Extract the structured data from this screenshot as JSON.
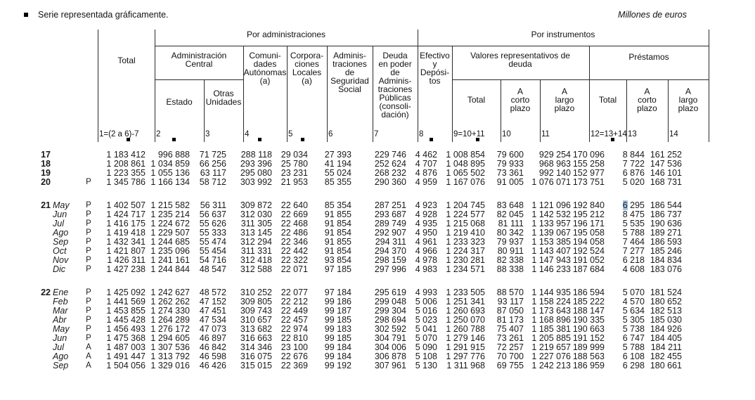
{
  "meta": {
    "legend": "Serie representada gráficamente.",
    "units": "Millones de euros",
    "selection_color": "#a3c6e8",
    "marker_columns": [
      "1",
      "2",
      "4",
      "5",
      "8",
      "9",
      "12"
    ]
  },
  "header": {
    "por_administraciones": "Por administraciones",
    "por_instrumentos": "Por instrumentos",
    "total1": "Total",
    "admin_central": "Administración\nCentral",
    "estado": "Estado",
    "otras_unidades": "Otras\nUnidades",
    "comunidades": "Comuni-\ndades\nAutónomas\n(a)",
    "corporaciones": "Corpora-\nciones\nLocales\n(a)",
    "seguridad_social": "Adminis-\ntraciones\nde\nSeguridad\nSocial",
    "deuda_en_poder": "Deuda\nen poder\nde\nAdminis-\ntraciones\nPúblicas\n(consoli-\ndación)",
    "efectivo": "Efectivo\ny\nDepósi-\ntos",
    "valores": "Valores representativos de\ndeuda",
    "prestamos": "Préstamos",
    "valores_total": "Total",
    "valores_corto": "A\ncorto\nplazo",
    "valores_largo": "A\nlargo\nplazo",
    "prestamos_total": "Total",
    "prestamos_corto": "A\ncorto\nplazo",
    "prestamos_largo": "A\nlargo\nplazo",
    "colnums": [
      "1=(2 a 6)-7",
      "2",
      "3",
      "4",
      "5",
      "6",
      "7",
      "8",
      "9=10+11",
      "10",
      "11",
      "12=13+14",
      "13",
      "14"
    ]
  },
  "table": {
    "selection": {
      "group": 1,
      "row": 0,
      "col": 12,
      "length": 1
    },
    "row_groups": [
      {
        "rows": [
          {
            "year": "17",
            "month": "",
            "flag": "",
            "values": [
              "1 183 412",
              "996 888",
              "71 725",
              "288 118",
              "29 034",
              "27 393",
              "229 746",
              "4 462",
              "1 008 854",
              "79 600",
              "929 254",
              "170 096",
              "8 844",
              "161 252"
            ]
          },
          {
            "year": "18",
            "month": "",
            "flag": "",
            "values": [
              "1 208 861",
              "1 034 859",
              "66 256",
              "293 396",
              "25 780",
              "41 194",
              "252 624",
              "4 707",
              "1 048 895",
              "79 933",
              "968 963",
              "155 258",
              "7 722",
              "147 536"
            ]
          },
          {
            "year": "19",
            "month": "",
            "flag": "",
            "values": [
              "1 223 355",
              "1 055 136",
              "63 117",
              "295 080",
              "23 231",
              "55 024",
              "268 232",
              "4 876",
              "1 065 502",
              "73 361",
              "992 140",
              "152 977",
              "6 876",
              "146 101"
            ]
          },
          {
            "year": "20",
            "month": "",
            "flag": "P",
            "values": [
              "1 345 786",
              "1 166 134",
              "58 712",
              "303 992",
              "21 953",
              "85 355",
              "290 360",
              "4 959",
              "1 167 076",
              "91 005",
              "1 076 071",
              "173 751",
              "5 020",
              "168 731"
            ]
          }
        ]
      },
      {
        "rows": [
          {
            "year": "21",
            "month": "May",
            "flag": "P",
            "values": [
              "1 402 507",
              "1 215 582",
              "56 311",
              "309 872",
              "22 640",
              "85 354",
              "287 251",
              "4 923",
              "1 204 745",
              "83 648",
              "1 121 096",
              "192 840",
              "6 295",
              "186 544"
            ]
          },
          {
            "year": "",
            "month": "Jun",
            "flag": "P",
            "values": [
              "1 424 717",
              "1 235 214",
              "56 637",
              "312 030",
              "22 669",
              "91 855",
              "293 687",
              "4 928",
              "1 224 577",
              "82 045",
              "1 142 532",
              "195 212",
              "8 475",
              "186 737"
            ]
          },
          {
            "year": "",
            "month": "Jul",
            "flag": "P",
            "values": [
              "1 416 175",
              "1 224 672",
              "55 626",
              "311 305",
              "22 468",
              "91 854",
              "289 749",
              "4 935",
              "1 215 068",
              "81 111",
              "1 133 957",
              "196 171",
              "5 535",
              "190 636"
            ]
          },
          {
            "year": "",
            "month": "Ago",
            "flag": "P",
            "values": [
              "1 419 418",
              "1 229 507",
              "55 333",
              "313 145",
              "22 486",
              "91 854",
              "292 907",
              "4 950",
              "1 219 410",
              "80 342",
              "1 139 067",
              "195 058",
              "5 788",
              "189 271"
            ]
          },
          {
            "year": "",
            "month": "Sep",
            "flag": "P",
            "values": [
              "1 432 341",
              "1 244 685",
              "55 474",
              "312 294",
              "22 346",
              "91 855",
              "294 311",
              "4 961",
              "1 233 323",
              "79 937",
              "1 153 385",
              "194 058",
              "7 464",
              "186 593"
            ]
          },
          {
            "year": "",
            "month": "Oct",
            "flag": "P",
            "values": [
              "1 421 807",
              "1 235 096",
              "55 454",
              "311 331",
              "22 442",
              "91 854",
              "294 370",
              "4 966",
              "1 224 317",
              "80 911",
              "1 143 407",
              "192 524",
              "7 277",
              "185 246"
            ]
          },
          {
            "year": "",
            "month": "Nov",
            "flag": "P",
            "values": [
              "1 426 311",
              "1 241 161",
              "54 716",
              "312 418",
              "22 322",
              "93 854",
              "298 159",
              "4 978",
              "1 230 281",
              "82 338",
              "1 147 943",
              "191 052",
              "6 218",
              "184 834"
            ]
          },
          {
            "year": "",
            "month": "Dic",
            "flag": "P",
            "values": [
              "1 427 238",
              "1 244 844",
              "48 547",
              "312 588",
              "22 071",
              "97 185",
              "297 996",
              "4 983",
              "1 234 571",
              "88 338",
              "1 146 233",
              "187 684",
              "4 608",
              "183 076"
            ]
          }
        ]
      },
      {
        "rows": [
          {
            "year": "22",
            "month": "Ene",
            "flag": "P",
            "values": [
              "1 425 092",
              "1 242 627",
              "48 572",
              "310 252",
              "22 077",
              "97 184",
              "295 619",
              "4 993",
              "1 233 505",
              "88 570",
              "1 144 935",
              "186 594",
              "5 070",
              "181 524"
            ]
          },
          {
            "year": "",
            "month": "Feb",
            "flag": "P",
            "values": [
              "1 441 569",
              "1 262 262",
              "47 152",
              "309 805",
              "22 212",
              "99 186",
              "299 048",
              "5 006",
              "1 251 341",
              "93 117",
              "1 158 224",
              "185 222",
              "4 570",
              "180 652"
            ]
          },
          {
            "year": "",
            "month": "Mar",
            "flag": "P",
            "values": [
              "1 453 855",
              "1 274 330",
              "47 451",
              "309 743",
              "22 449",
              "99 187",
              "299 304",
              "5 016",
              "1 260 693",
              "87 050",
              "1 173 643",
              "188 147",
              "5 634",
              "182 513"
            ]
          },
          {
            "year": "",
            "month": "Abr",
            "flag": "P",
            "values": [
              "1 445 428",
              "1 264 289",
              "47 534",
              "310 657",
              "22 457",
              "99 185",
              "298 694",
              "5 023",
              "1 250 070",
              "81 173",
              "1 168 896",
              "190 335",
              "5 305",
              "185 030"
            ]
          },
          {
            "year": "",
            "month": "May",
            "flag": "P",
            "values": [
              "1 456 493",
              "1 276 172",
              "47 073",
              "313 682",
              "22 974",
              "99 183",
              "302 592",
              "5 041",
              "1 260 788",
              "75 407",
              "1 185 381",
              "190 663",
              "5 738",
              "184 926"
            ]
          },
          {
            "year": "",
            "month": "Jun",
            "flag": "P",
            "values": [
              "1 475 368",
              "1 294 605",
              "46 897",
              "316 663",
              "22 810",
              "99 185",
              "304 791",
              "5 070",
              "1 279 146",
              "73 261",
              "1 205 885",
              "191 152",
              "6 747",
              "184 405"
            ]
          },
          {
            "year": "",
            "month": "Jul",
            "flag": "A",
            "values": [
              "1 487 003",
              "1 307 536",
              "46 842",
              "314 346",
              "23 100",
              "99 184",
              "304 006",
              "5 090",
              "1 291 915",
              "72 257",
              "1 219 657",
              "189 999",
              "5 788",
              "184 211"
            ]
          },
          {
            "year": "",
            "month": "Ago",
            "flag": "A",
            "values": [
              "1 491 447",
              "1 313 792",
              "46 598",
              "316 075",
              "22 676",
              "99 184",
              "306 878",
              "5 108",
              "1 297 776",
              "70 700",
              "1 227 076",
              "188 563",
              "6 108",
              "182 455"
            ]
          },
          {
            "year": "",
            "month": "Sep",
            "flag": "A",
            "values": [
              "1 504 056",
              "1 329 016",
              "46 426",
              "315 015",
              "22 369",
              "99 192",
              "307 961",
              "5 130",
              "1 311 968",
              "69 755",
              "1 242 213",
              "186 959",
              "6 298",
              "180 661"
            ]
          }
        ]
      }
    ]
  }
}
